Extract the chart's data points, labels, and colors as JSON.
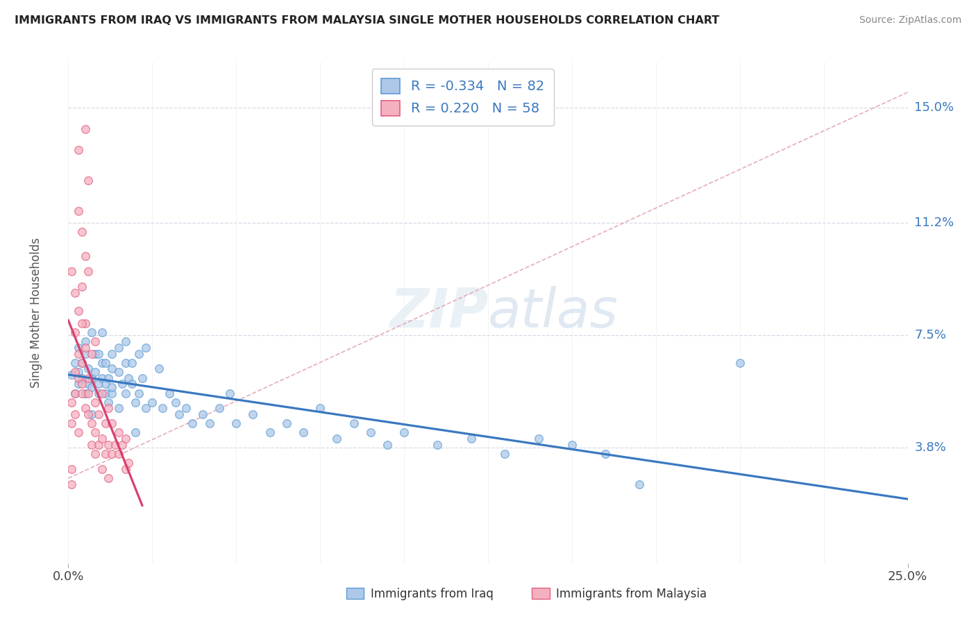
{
  "title": "IMMIGRANTS FROM IRAQ VS IMMIGRANTS FROM MALAYSIA SINGLE MOTHER HOUSEHOLDS CORRELATION CHART",
  "source": "Source: ZipAtlas.com",
  "ylabel": "Single Mother Households",
  "ytick_vals": [
    0.038,
    0.075,
    0.112,
    0.15
  ],
  "ytick_labels": [
    "3.8%",
    "7.5%",
    "11.2%",
    "15.0%"
  ],
  "xtick_vals": [
    0.0,
    0.25
  ],
  "xtick_labels": [
    "0.0%",
    "25.0%"
  ],
  "xlim": [
    0.0,
    0.25
  ],
  "ylim": [
    0.0,
    0.165
  ],
  "legend_r_iraq": "-0.334",
  "legend_n_iraq": "82",
  "legend_r_malaysia": " 0.220",
  "legend_n_malaysia": "58",
  "iraq_face_color": "#adc8e8",
  "iraq_edge_color": "#5b9bd5",
  "malaysia_face_color": "#f5b0c0",
  "malaysia_edge_color": "#e06080",
  "iraq_line_color": "#3a78c0",
  "malaysia_line_color": "#d84070",
  "trend_line_color": "#e0a0b0",
  "scatter_alpha": 0.75,
  "scatter_size": 70,
  "iraq_scatter_x": [
    0.001,
    0.002,
    0.002,
    0.003,
    0.003,
    0.004,
    0.004,
    0.005,
    0.005,
    0.006,
    0.006,
    0.007,
    0.007,
    0.008,
    0.008,
    0.009,
    0.009,
    0.01,
    0.01,
    0.011,
    0.011,
    0.012,
    0.012,
    0.013,
    0.013,
    0.015,
    0.015,
    0.016,
    0.017,
    0.017,
    0.018,
    0.019,
    0.02,
    0.021,
    0.022,
    0.023,
    0.025,
    0.027,
    0.028,
    0.03,
    0.032,
    0.033,
    0.035,
    0.037,
    0.04,
    0.042,
    0.045,
    0.048,
    0.05,
    0.055,
    0.06,
    0.065,
    0.07,
    0.075,
    0.08,
    0.085,
    0.09,
    0.095,
    0.1,
    0.11,
    0.12,
    0.13,
    0.14,
    0.15,
    0.16,
    0.17,
    0.003,
    0.005,
    0.007,
    0.009,
    0.011,
    0.013,
    0.015,
    0.017,
    0.019,
    0.021,
    0.023,
    0.2,
    0.007,
    0.01,
    0.013,
    0.02
  ],
  "iraq_scatter_y": [
    0.062,
    0.066,
    0.056,
    0.059,
    0.063,
    0.061,
    0.066,
    0.056,
    0.069,
    0.059,
    0.064,
    0.061,
    0.058,
    0.063,
    0.069,
    0.059,
    0.056,
    0.061,
    0.066,
    0.056,
    0.059,
    0.053,
    0.061,
    0.064,
    0.056,
    0.051,
    0.063,
    0.059,
    0.066,
    0.056,
    0.061,
    0.059,
    0.053,
    0.056,
    0.061,
    0.051,
    0.053,
    0.064,
    0.051,
    0.056,
    0.053,
    0.049,
    0.051,
    0.046,
    0.049,
    0.046,
    0.051,
    0.056,
    0.046,
    0.049,
    0.043,
    0.046,
    0.043,
    0.051,
    0.041,
    0.046,
    0.043,
    0.039,
    0.043,
    0.039,
    0.041,
    0.036,
    0.041,
    0.039,
    0.036,
    0.026,
    0.071,
    0.073,
    0.076,
    0.069,
    0.066,
    0.069,
    0.071,
    0.073,
    0.066,
    0.069,
    0.071,
    0.066,
    0.049,
    0.076,
    0.058,
    0.043
  ],
  "malaysia_scatter_x": [
    0.001,
    0.001,
    0.002,
    0.002,
    0.003,
    0.003,
    0.004,
    0.004,
    0.004,
    0.005,
    0.005,
    0.005,
    0.006,
    0.006,
    0.006,
    0.007,
    0.007,
    0.007,
    0.008,
    0.008,
    0.008,
    0.009,
    0.009,
    0.01,
    0.01,
    0.011,
    0.011,
    0.012,
    0.012,
    0.013,
    0.013,
    0.014,
    0.015,
    0.015,
    0.016,
    0.017,
    0.017,
    0.018,
    0.003,
    0.003,
    0.004,
    0.005,
    0.006,
    0.005,
    0.001,
    0.002,
    0.002,
    0.003,
    0.004,
    0.004,
    0.006,
    0.003,
    0.002,
    0.001,
    0.001,
    0.008,
    0.01,
    0.012
  ],
  "malaysia_scatter_y": [
    0.046,
    0.053,
    0.056,
    0.049,
    0.061,
    0.043,
    0.056,
    0.066,
    0.059,
    0.051,
    0.071,
    0.079,
    0.049,
    0.056,
    0.061,
    0.039,
    0.046,
    0.069,
    0.043,
    0.053,
    0.073,
    0.039,
    0.049,
    0.041,
    0.056,
    0.036,
    0.046,
    0.039,
    0.051,
    0.036,
    0.046,
    0.039,
    0.036,
    0.043,
    0.039,
    0.031,
    0.041,
    0.033,
    0.116,
    0.136,
    0.109,
    0.101,
    0.126,
    0.143,
    0.096,
    0.089,
    0.076,
    0.083,
    0.091,
    0.079,
    0.096,
    0.069,
    0.063,
    0.031,
    0.026,
    0.036,
    0.031,
    0.028
  ]
}
